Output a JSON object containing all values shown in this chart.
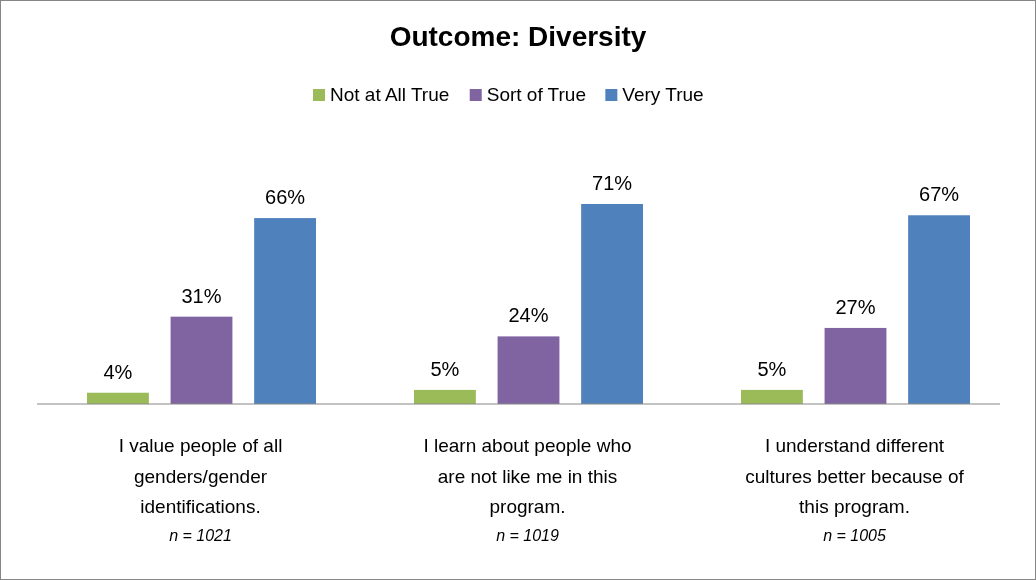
{
  "chart_data": {
    "type": "bar",
    "title": "Outcome: Diversity",
    "categories": [
      "I value people of all genders/gender identifications.",
      "I learn about people who are not like me in this program.",
      "I understand different cultures better because of this program."
    ],
    "series": [
      {
        "name": "Not at All True",
        "color": "#9bbb59",
        "values": [
          4,
          5,
          5
        ],
        "value_labels": [
          "4%",
          "5%",
          "5%"
        ]
      },
      {
        "name": "Sort of True",
        "color": "#8064a2",
        "values": [
          31,
          24,
          27
        ],
        "value_labels": [
          "31%",
          "24%",
          "27%"
        ]
      },
      {
        "name": "Very True",
        "color": "#4f81bd",
        "values": [
          66,
          71,
          67
        ],
        "value_labels": [
          "66%",
          "71%",
          "67%"
        ]
      }
    ],
    "annotations": [
      "n = 1021",
      "n = 1019",
      "n = 1005"
    ],
    "legend": "top"
  }
}
